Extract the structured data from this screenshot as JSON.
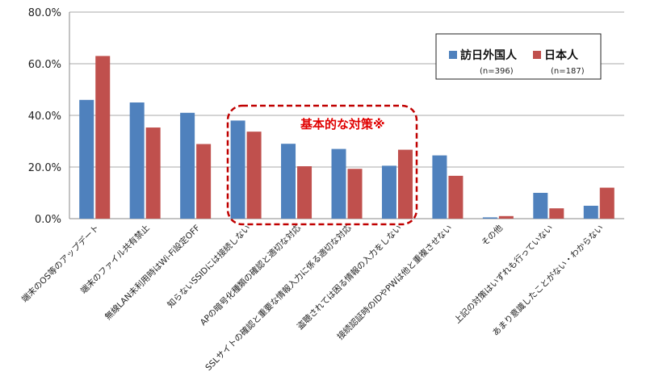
{
  "chart_data": {
    "type": "bar",
    "ylim": [
      0,
      80
    ],
    "yticks": [
      "0.0%",
      "20.0%",
      "40.0%",
      "60.0%",
      "80.0%"
    ],
    "grid": true,
    "legend_position": "top-right",
    "categories": [
      "端末のOS等のアップデート",
      "端末のファイル共有禁止",
      "無線LAN未利用時はWi-Fi設定OFF",
      "知らないSSIDには接続しない",
      "APの暗号化種類の確認と適切な対応",
      "SSLサイトの確認と重要な情報入力に係る適切な対応",
      "盗聴されては困る情報の入力をしない",
      "接続認証時のIDやPWは他と重複させない",
      "その他",
      "上記の対策はいずれも行っていない",
      "あまり意識したことがない・わからない"
    ],
    "series": [
      {
        "name": "訪日外国人",
        "n": "(n=396)",
        "color": "#4f81bd",
        "values": [
          46.0,
          45.0,
          41.0,
          38.0,
          29.0,
          27.0,
          20.5,
          24.5,
          0.5,
          10.0,
          5.0
        ]
      },
      {
        "name": "日本人",
        "n": "(n=187)",
        "color": "#c0504d",
        "values": [
          63.0,
          35.3,
          28.9,
          33.7,
          20.3,
          19.3,
          26.7,
          16.6,
          1.0,
          4.0,
          12.0
        ]
      }
    ],
    "annotation": "基本的な対策※"
  }
}
